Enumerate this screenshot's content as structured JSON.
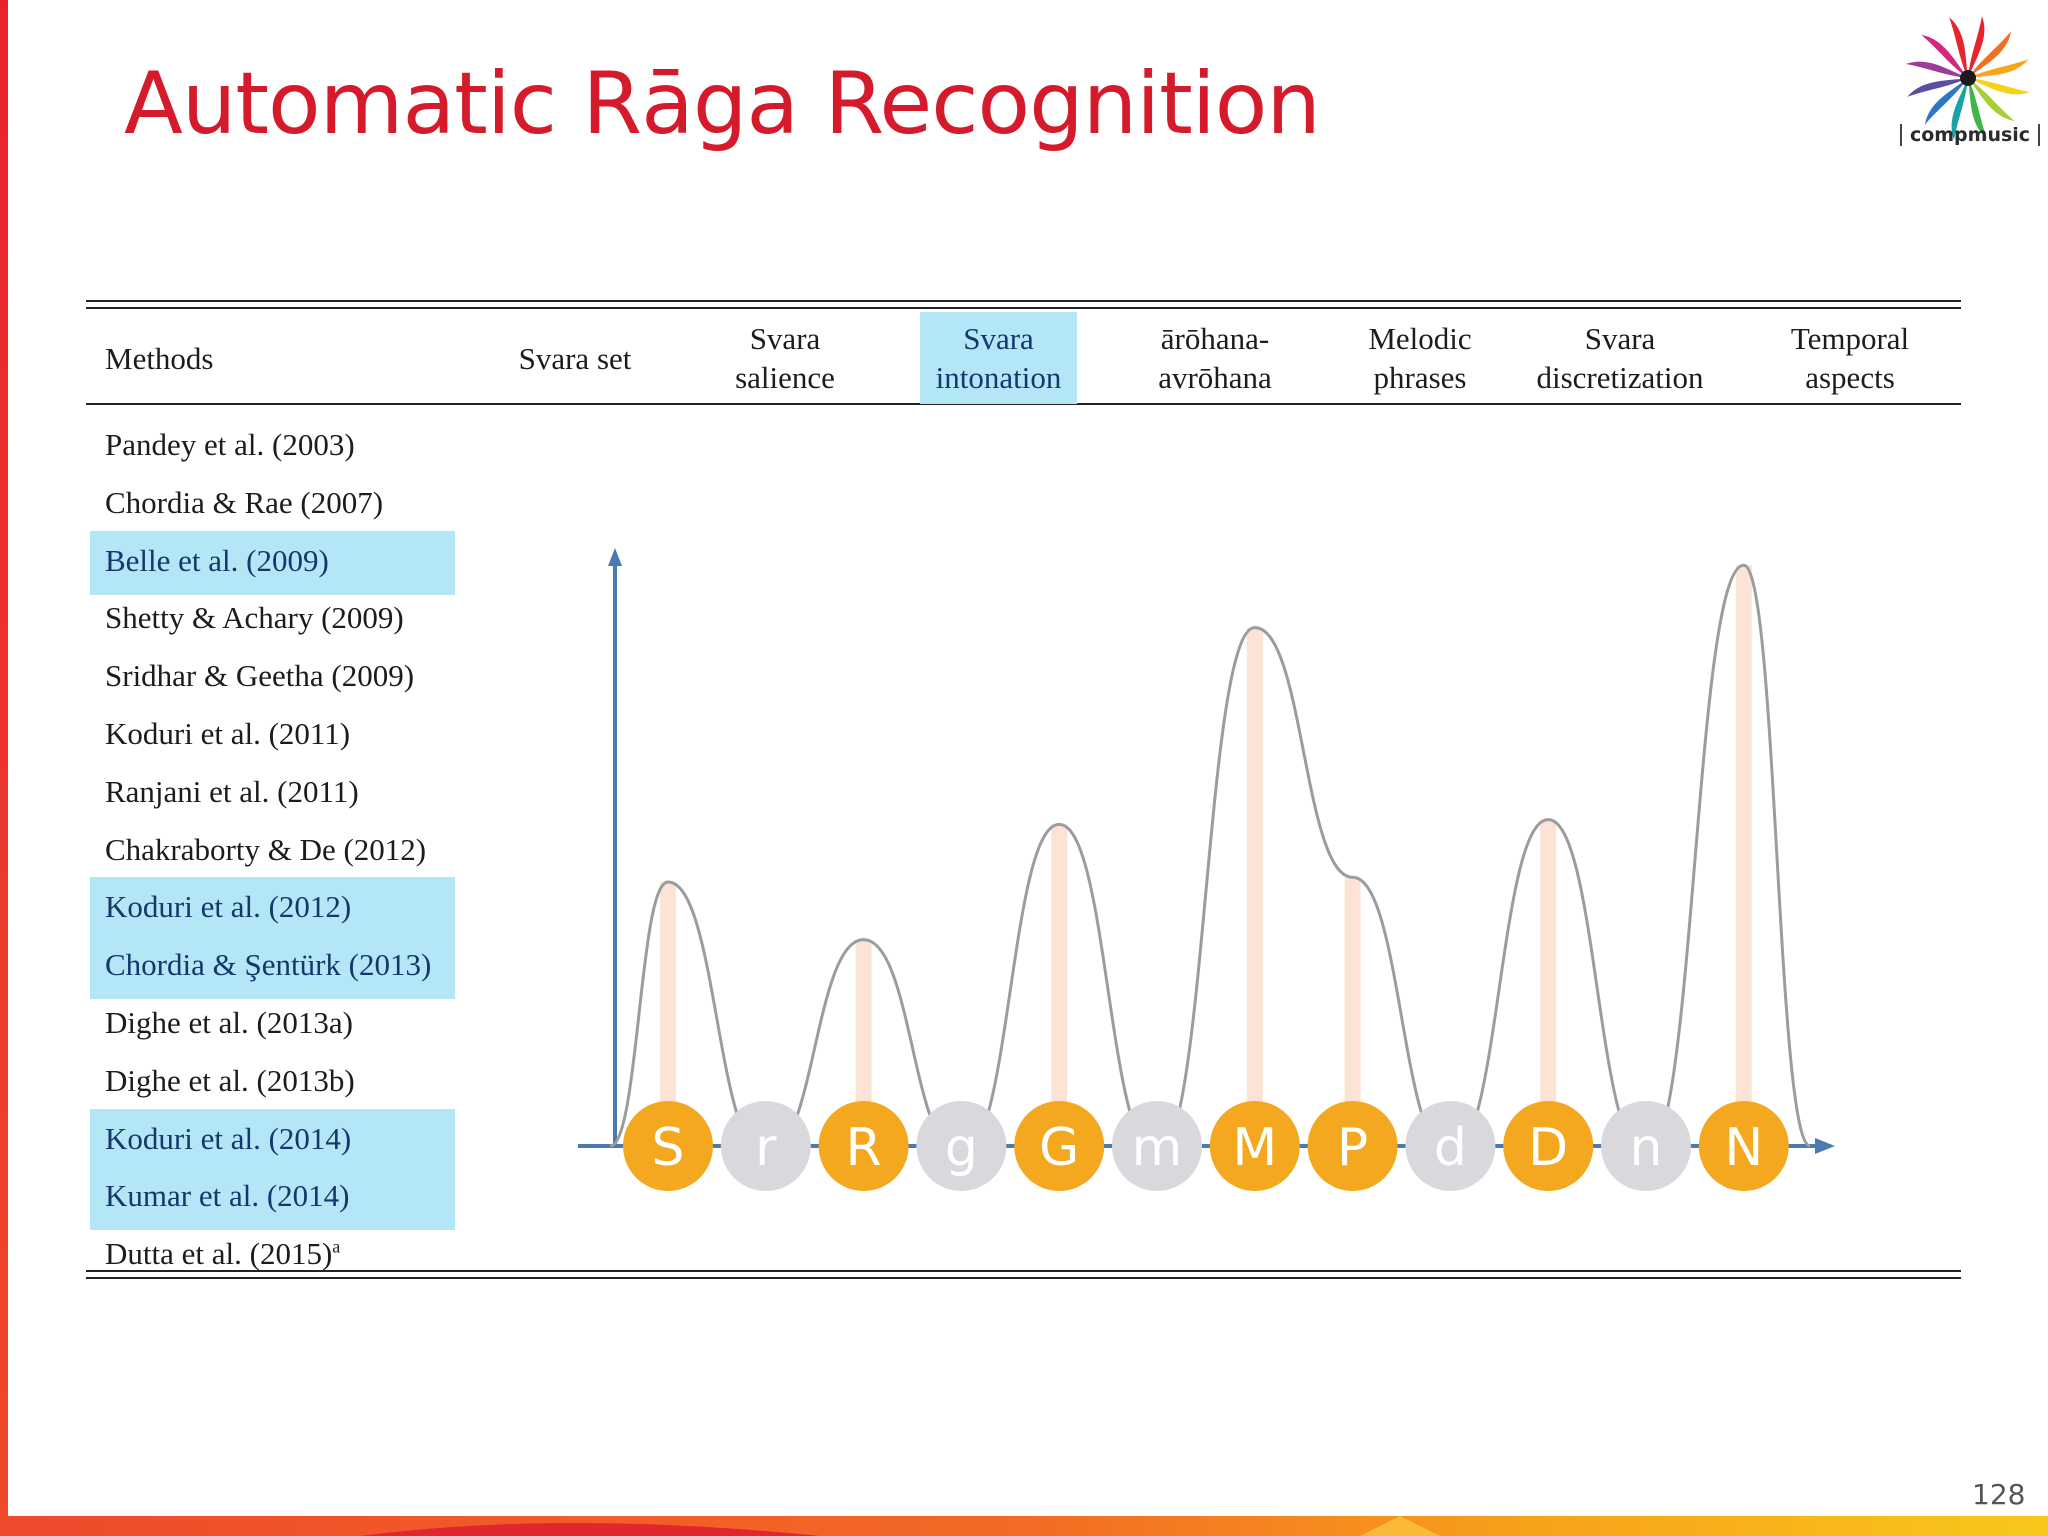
{
  "title": "Automatic Rāga Recognition",
  "logo": {
    "text": "compmusic",
    "icon": "compmusic-pinwheel-icon"
  },
  "page_number": "128",
  "table": {
    "columns": [
      {
        "line1": "Methods",
        "line2": ""
      },
      {
        "line1": "Svara set",
        "line2": ""
      },
      {
        "line1": "Svara",
        "line2": "salience"
      },
      {
        "line1": "Svara",
        "line2": "intonation",
        "highlighted": true
      },
      {
        "line1": "ārōhana-",
        "line2": "avrōhana"
      },
      {
        "line1": "Melodic",
        "line2": "phrases"
      },
      {
        "line1": "Svara",
        "line2": "discretization"
      },
      {
        "line1": "Temporal",
        "line2": "aspects"
      }
    ],
    "methods": [
      {
        "name": "Pandey et al. (2003)",
        "highlighted": false
      },
      {
        "name": "Chordia & Rae (2007)",
        "highlighted": false
      },
      {
        "name": "Belle et al. (2009)",
        "highlighted": true
      },
      {
        "name": "Shetty & Achary (2009)",
        "highlighted": false
      },
      {
        "name": "Sridhar & Geetha (2009)",
        "highlighted": false
      },
      {
        "name": "Koduri et al. (2011)",
        "highlighted": false
      },
      {
        "name": "Ranjani et al. (2011)",
        "highlighted": false
      },
      {
        "name": "Chakraborty & De (2012)",
        "highlighted": false
      },
      {
        "name": "Koduri et al. (2012)",
        "highlighted": true
      },
      {
        "name": "Chordia & Şentürk (2013)",
        "highlighted": true
      },
      {
        "name": "Dighe et al. (2013a)",
        "highlighted": false
      },
      {
        "name": "Dighe et al. (2013b)",
        "highlighted": false
      },
      {
        "name": "Koduri et al. (2014)",
        "highlighted": true
      },
      {
        "name": "Kumar et al. (2014)",
        "highlighted": true
      },
      {
        "name": "Dutta et al. (2015)",
        "sup": "a",
        "highlighted": false
      }
    ]
  },
  "svaras": [
    {
      "label": "S",
      "active": true,
      "peak": 0.55
    },
    {
      "label": "r",
      "active": false
    },
    {
      "label": "R",
      "active": true,
      "peak": 0.43
    },
    {
      "label": "g",
      "active": false
    },
    {
      "label": "G",
      "active": true,
      "peak": 0.67
    },
    {
      "label": "m",
      "active": false
    },
    {
      "label": "M",
      "active": true,
      "peak": 1.08
    },
    {
      "label": "P",
      "active": true,
      "peak": 0.56
    },
    {
      "label": "d",
      "active": false
    },
    {
      "label": "D",
      "active": true,
      "peak": 0.68
    },
    {
      "label": "n",
      "active": false
    },
    {
      "label": "N",
      "active": true,
      "peak": 1.21
    }
  ],
  "colors": {
    "title": "#d51b2b",
    "highlight": "#b3e7f8",
    "svara_active": "#f4a81f",
    "svara_inactive": "#d9d8dc",
    "peak_bar": "#fde3d6",
    "curve": "#9c9c9c",
    "axis": "#4a7ab0"
  }
}
